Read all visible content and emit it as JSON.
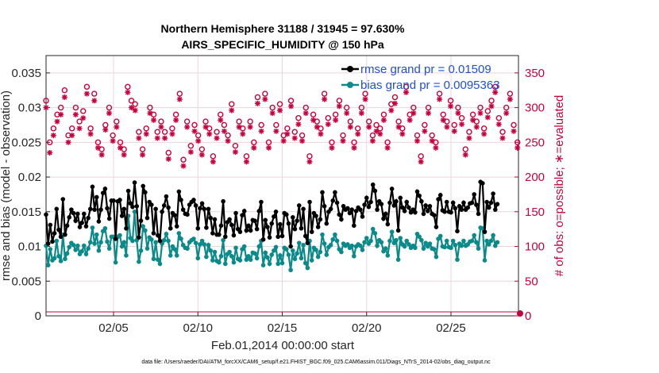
{
  "chart_data": {
    "type": "line",
    "title": "Northern Hemisphere 31188 / 31945 = 97.630%",
    "subtitle": "AIRS_SPECIFIC_HUMIDITY @ 150 hPa",
    "xlabel": "Feb.01,2014 00:00:00 start",
    "ylabel_left": "rmse and bias (model - observation)",
    "ylabel_right": "# of obs: o=possible; ∗=evaluated",
    "footnote": "data file: /Users/raeder/DAI/ATM_forcXX/CAM6_setup/f.e21.FHIST_BGC.f09_025.CAM6assim.011/Diags_NTrS_2014-02/obs_diag_output.nc",
    "xlim": [
      1.0,
      29.0
    ],
    "ylim_left": [
      0,
      0.0375
    ],
    "ylim_right": [
      0,
      375
    ],
    "grid": true,
    "x_ticks": [
      5,
      10,
      15,
      20,
      25
    ],
    "x_tick_labels": [
      "02/05",
      "02/10",
      "02/15",
      "02/20",
      "02/25"
    ],
    "y_ticks_left": [
      0,
      0.005,
      0.01,
      0.015,
      0.02,
      0.025,
      0.03,
      0.035
    ],
    "y_tick_labels_left": [
      "0",
      "0.005",
      "0.01",
      "0.015",
      "0.02",
      "0.025",
      "0.03",
      "0.035"
    ],
    "y_ticks_right": [
      0,
      50,
      100,
      150,
      200,
      250,
      300,
      350
    ],
    "y_tick_labels_right": [
      "0",
      "50",
      "100",
      "150",
      "200",
      "250",
      "300",
      "350"
    ],
    "legend_position": "top-right",
    "series": [
      {
        "name": "rmse grand pr = 0.01509",
        "axis": "left",
        "color": "#000000",
        "marker": "filled-circle",
        "values": [
          0.0146,
          0.0104,
          0.0131,
          0.0107,
          0.0119,
          0.0154,
          0.0124,
          0.0114,
          0.0168,
          0.0117,
          0.013,
          0.0142,
          0.0153,
          0.0148,
          0.0137,
          0.0147,
          0.0128,
          0.0134,
          0.0147,
          0.0129,
          0.0141,
          0.0154,
          0.0186,
          0.0153,
          0.0171,
          0.0136,
          0.0153,
          0.0177,
          0.0183,
          0.0155,
          0.014,
          0.0166,
          0.0166,
          0.0111,
          0.0165,
          0.0167,
          0.0144,
          0.0154,
          0.0126,
          0.018,
          0.0162,
          0.0157,
          0.0192,
          0.0158,
          0.0113,
          0.0137,
          0.0187,
          0.0178,
          0.0141,
          0.0164,
          0.016,
          0.0119,
          0.0154,
          0.0116,
          0.0108,
          0.015,
          0.0159,
          0.0172,
          0.0156,
          0.0126,
          0.0148,
          0.0145,
          0.0129,
          0.0179,
          0.0167,
          0.0153,
          0.0147,
          0.0146,
          0.016,
          0.0164,
          0.0167,
          0.0159,
          0.0126,
          0.0155,
          0.0162,
          0.0154,
          0.0127,
          0.0154,
          0.0141,
          0.0119,
          0.0139,
          0.0117,
          0.0117,
          0.013,
          0.0165,
          0.0114,
          0.0135,
          0.0139,
          0.0131,
          0.0116,
          0.0148,
          0.0125,
          0.0121,
          0.0145,
          0.0151,
          0.0123,
          0.013,
          0.0123,
          0.0138,
          0.0137,
          0.0125,
          0.0151,
          0.0164,
          0.011,
          0.0138,
          0.0128,
          0.0113,
          0.0133,
          0.0143,
          0.015,
          0.0114,
          0.0132,
          0.0115,
          0.0148,
          0.0146,
          0.0133,
          0.01,
          0.0142,
          0.0125,
          0.0137,
          0.0159,
          0.0126,
          0.0154,
          0.0115,
          0.0105,
          0.0164,
          0.0121,
          0.0148,
          0.0144,
          0.0128,
          0.0139,
          0.0178,
          0.0158,
          0.0133,
          0.015,
          0.0154,
          0.0166,
          0.0178,
          0.0163,
          0.0146,
          0.0139,
          0.0158,
          0.0153,
          0.0155,
          0.0148,
          0.0153,
          0.013,
          0.0151,
          0.0156,
          0.0153,
          0.0143,
          0.016,
          0.017,
          0.0157,
          0.0164,
          0.0189,
          0.018,
          0.0153,
          0.0165,
          0.0161,
          0.014,
          0.0147,
          0.0132,
          0.0163,
          0.0183,
          0.0159,
          0.0165,
          0.0123,
          0.017,
          0.0156,
          0.0151,
          0.0164,
          0.0156,
          0.0149,
          0.0153,
          0.0149,
          0.0179,
          0.0173,
          0.0165,
          0.0147,
          0.0159,
          0.0151,
          0.0158,
          0.0147,
          0.0145,
          0.0128,
          0.0168,
          0.0174,
          0.0152,
          0.015,
          0.0164,
          0.015,
          0.0149,
          0.0163,
          0.0155,
          0.0122,
          0.0158,
          0.0153,
          0.0163,
          0.0153,
          0.0156,
          0.0162,
          0.0163,
          0.0175,
          0.016,
          0.0147,
          0.0193,
          0.0191,
          0.0121,
          0.0164,
          0.0156,
          0.0163,
          0.0176,
          0.0153,
          0.0161
        ],
        "x_start": 1.0,
        "x_step": 0.125
      },
      {
        "name": "bias grand pr = 0.0095363",
        "axis": "left",
        "color": "#0b8a8a",
        "marker": "filled-circle",
        "values": [
          0.0101,
          0.0073,
          0.0096,
          0.008,
          0.0083,
          0.0108,
          0.0086,
          0.0079,
          0.0117,
          0.0082,
          0.009,
          0.0099,
          0.0105,
          0.0102,
          0.0095,
          0.0101,
          0.0089,
          0.0093,
          0.0101,
          0.0089,
          0.0097,
          0.0106,
          0.0127,
          0.0104,
          0.0117,
          0.0094,
          0.0106,
          0.0122,
          0.0126,
          0.0107,
          0.0097,
          0.0114,
          0.0114,
          0.0077,
          0.0114,
          0.0116,
          0.01,
          0.0106,
          0.0087,
          0.0144,
          0.0112,
          0.0108,
          0.015,
          0.0109,
          0.0078,
          0.0094,
          0.0129,
          0.0123,
          0.0097,
          0.0113,
          0.011,
          0.0082,
          0.0106,
          0.0081,
          0.0075,
          0.0104,
          0.0109,
          0.0118,
          0.0108,
          0.0087,
          0.01,
          0.0096,
          0.0087,
          0.0119,
          0.0111,
          0.0102,
          0.0098,
          0.0097,
          0.0106,
          0.0109,
          0.0111,
          0.0105,
          0.0083,
          0.0103,
          0.0108,
          0.0103,
          0.0085,
          0.0102,
          0.0094,
          0.008,
          0.0092,
          0.0079,
          0.0077,
          0.0086,
          0.0109,
          0.0075,
          0.0089,
          0.0092,
          0.0086,
          0.0077,
          0.0098,
          0.0082,
          0.008,
          0.0096,
          0.01,
          0.0081,
          0.0086,
          0.0081,
          0.0091,
          0.009,
          0.0083,
          0.01,
          0.0108,
          0.0073,
          0.0091,
          0.0084,
          0.0075,
          0.0088,
          0.0094,
          0.0099,
          0.0075,
          0.0087,
          0.0076,
          0.0098,
          0.0096,
          0.0088,
          0.0066,
          0.0094,
          0.0082,
          0.009,
          0.0105,
          0.0083,
          0.0102,
          0.0076,
          0.0069,
          0.0108,
          0.008,
          0.0098,
          0.0095,
          0.0085,
          0.0092,
          0.0117,
          0.0104,
          0.0088,
          0.0099,
          0.0102,
          0.011,
          0.0117,
          0.0108,
          0.0096,
          0.0092,
          0.0104,
          0.0101,
          0.0103,
          0.0098,
          0.0101,
          0.0086,
          0.01,
          0.0103,
          0.0101,
          0.0095,
          0.0106,
          0.0112,
          0.0104,
          0.0108,
          0.0125,
          0.0119,
          0.0101,
          0.0109,
          0.0106,
          0.0093,
          0.0097,
          0.0087,
          0.0108,
          0.0121,
          0.0105,
          0.0109,
          0.0081,
          0.0112,
          0.0103,
          0.01,
          0.0108,
          0.0103,
          0.0098,
          0.0101,
          0.0098,
          0.0118,
          0.0114,
          0.0109,
          0.0097,
          0.0105,
          0.01,
          0.0104,
          0.0097,
          0.0096,
          0.0085,
          0.0111,
          0.0115,
          0.01,
          0.0099,
          0.0108,
          0.0099,
          0.0098,
          0.0108,
          0.0102,
          0.0081,
          0.0104,
          0.0101,
          0.0108,
          0.0101,
          0.0103,
          0.0107,
          0.0108,
          0.0116,
          0.0106,
          0.0097,
          0.0127,
          0.0126,
          0.008,
          0.0108,
          0.0103,
          0.0108,
          0.0116,
          0.0101,
          0.0106
        ],
        "x_start": 1.0,
        "x_step": 0.125
      },
      {
        "name": "possible",
        "axis": "right",
        "color": "#c8003c",
        "marker": "open-circle",
        "values": [
          310,
          250,
          270,
          290,
          300,
          325,
          260,
          270,
          300,
          280,
          295,
          330,
          270,
          320,
          250,
          240,
          275,
          300,
          260,
          280,
          250,
          240,
          330,
          310,
          305,
          265,
          240,
          270,
          300,
          290,
          265,
          280,
          265,
          235,
          270,
          290,
          320,
          225,
          280,
          245,
          275,
          260,
          240,
          280,
          270,
          230,
          265,
          290,
          275,
          260,
          305,
          245,
          280,
          270,
          230,
          280,
          250,
          315,
          275,
          320,
          250,
          300,
          275,
          305,
          260,
          270,
          310,
          265,
          285,
          260,
          300,
          230,
          290,
          280,
          270,
          320,
          285,
          250,
          290,
          310,
          260,
          300,
          280,
          250,
          270,
          300,
          320,
          280,
          260,
          275,
          270,
          290,
          250,
          305,
          315,
          280,
          270,
          330,
          290,
          300,
          260,
          230,
          275,
          300,
          260,
          250,
          320,
          290,
          280,
          310,
          275,
          300,
          285,
          240,
          265,
          290,
          280,
          300,
          270,
          295,
          310,
          330,
          285,
          265,
          300,
          320,
          275,
          250
        ],
        "x_start": 1.0,
        "x_step": 0.22
      },
      {
        "name": "evaluated",
        "axis": "right",
        "color": "#c8003c",
        "marker": "asterisk",
        "values": [
          300,
          235,
          260,
          280,
          290,
          315,
          250,
          260,
          290,
          270,
          285,
          320,
          262,
          310,
          242,
          232,
          268,
          292,
          252,
          272,
          242,
          232,
          322,
          300,
          296,
          256,
          232,
          262,
          292,
          282,
          256,
          272,
          256,
          226,
          262,
          282,
          312,
          216,
          272,
          236,
          266,
          252,
          232,
          272,
          262,
          222,
          256,
          282,
          266,
          252,
          296,
          236,
          272,
          262,
          222,
          272,
          242,
          306,
          266,
          312,
          242,
          292,
          266,
          296,
          252,
          262,
          302,
          256,
          276,
          252,
          292,
          222,
          282,
          272,
          262,
          312,
          276,
          242,
          282,
          302,
          252,
          292,
          272,
          242,
          262,
          292,
          312,
          272,
          252,
          266,
          262,
          282,
          242,
          296,
          306,
          272,
          262,
          322,
          282,
          292,
          252,
          222,
          266,
          292,
          252,
          242,
          312,
          282,
          272,
          302,
          266,
          292,
          276,
          232,
          256,
          282,
          272,
          292,
          262,
          286,
          302,
          322,
          276,
          256,
          292,
          312,
          266,
          242
        ],
        "x_start": 1.0,
        "x_step": 0.22
      }
    ]
  },
  "colors": {
    "rmse": "#000000",
    "bias": "#0b8a8a",
    "obs": "#c8003c",
    "legend_text": "#1f4fd8",
    "grid": "#eed5dc",
    "axis": "#262626"
  }
}
